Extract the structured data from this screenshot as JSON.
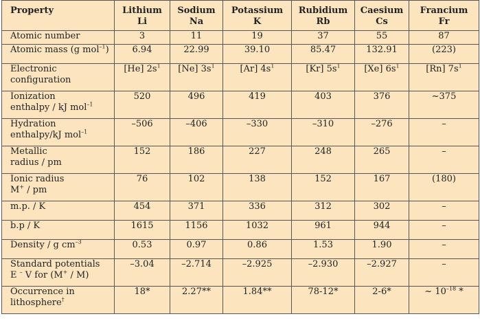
{
  "table": {
    "header": {
      "property": "Property",
      "elements": [
        {
          "name": "Lithium",
          "symbol": "Li"
        },
        {
          "name": "Sodium",
          "symbol": "Na"
        },
        {
          "name": "Potassium",
          "symbol": "K"
        },
        {
          "name": "Rubidium",
          "symbol": "Rb"
        },
        {
          "name": "Caesium",
          "symbol": "Cs"
        },
        {
          "name": "Francium",
          "symbol": "Fr"
        }
      ]
    },
    "rows": [
      {
        "label": "Atomic number",
        "values": [
          "3",
          "11",
          "19",
          "37",
          "55",
          "87"
        ]
      },
      {
        "label": "Atomic mass (g mol",
        "label_sup": "–1",
        "label_suffix": ")",
        "values": [
          "6.94",
          "22.99",
          "39.10",
          "85.47",
          "132.91",
          "(223)"
        ]
      },
      {
        "label": "Electronic",
        "label_line2": "configuration",
        "econfig": [
          {
            "core": "[He] 2s",
            "sup": "1"
          },
          {
            "core": "[Ne] 3s",
            "sup": "1"
          },
          {
            "core": "[Ar] 4s",
            "sup": "1"
          },
          {
            "core": "[Kr] 5s",
            "sup": "1"
          },
          {
            "core": "[Xe] 6s",
            "sup": "1"
          },
          {
            "core": "[Rn] 7s",
            "sup": "1"
          }
        ]
      },
      {
        "label": "Ionization",
        "label_line2": "enthalpy / kJ mol",
        "label_line2_sup": "–1",
        "values": [
          "520",
          "496",
          "419",
          "403",
          "376",
          "~375"
        ]
      },
      {
        "label": "Hydration",
        "label_line2": "enthalpy/kJ mol",
        "label_line2_sup": "–1",
        "values": [
          "–506",
          "–406",
          "–330",
          "–310",
          "–276",
          "–"
        ]
      },
      {
        "label": "Metallic",
        "label_line2": "radius / pm",
        "values": [
          "152",
          "186",
          "227",
          "248",
          "265",
          "–"
        ]
      },
      {
        "label": "Ionic radius",
        "label_line2": "M",
        "label_line2_sup": "+",
        "label_line2_suffix": " / pm",
        "values": [
          "76",
          "102",
          "138",
          "152",
          "167",
          "(180)"
        ]
      },
      {
        "label": "m.p. / K",
        "values": [
          "454",
          "371",
          "336",
          "312",
          "302",
          "–"
        ]
      },
      {
        "label": "b.p / K",
        "values": [
          "1615",
          "1156",
          "1032",
          "961",
          "944",
          "–"
        ]
      },
      {
        "label": "Density / g cm",
        "label_sup": "–3",
        "values": [
          "0.53",
          "0.97",
          "0.86",
          "1.53",
          "1.90",
          "–"
        ]
      },
      {
        "label": "Standard potentials",
        "label_line2": "E  ",
        "label_line2_sup": "–",
        "label_line2_suffix": "   V for (M",
        "label_line2_sup2": "+",
        "label_line2_suffix2": " / M)",
        "values": [
          "–3.04",
          "–2.714",
          "–2.925",
          "–2.930",
          "–2.927",
          "–"
        ]
      },
      {
        "label": "Occurrence in",
        "label_line2": "lithosphere",
        "label_line2_sup": "†",
        "values": [
          "18*",
          "2.27**",
          "1.84**",
          "78-12*",
          "2-6*",
          "~ 10"
        ],
        "last_sup": "–18",
        "last_suffix": " *"
      }
    ]
  }
}
